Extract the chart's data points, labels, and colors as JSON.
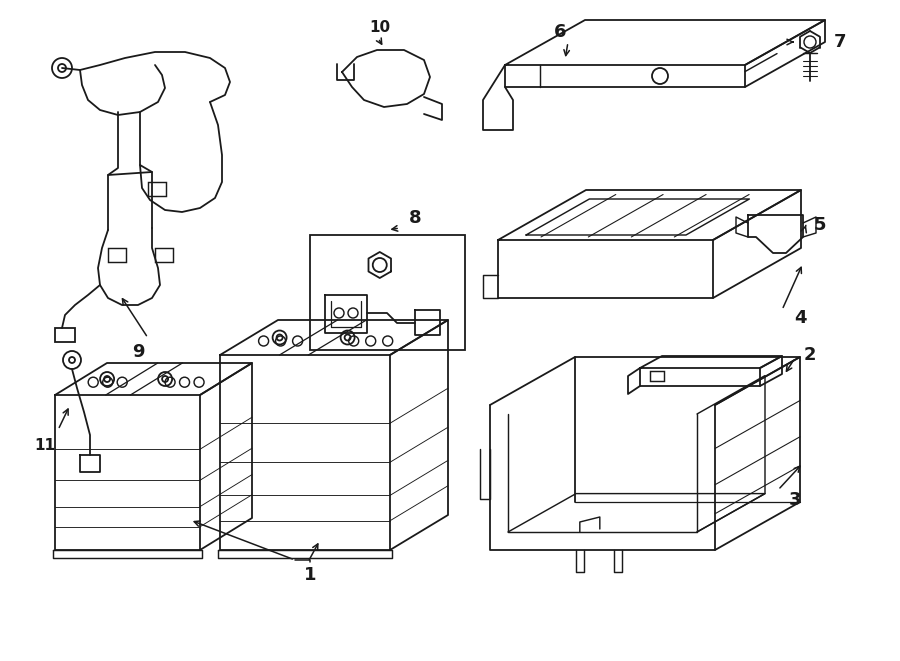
{
  "background_color": "#ffffff",
  "line_color": "#1a1a1a",
  "label_color": "#1a1a1a",
  "label_fontsize": 12,
  "fig_width": 9.0,
  "fig_height": 6.61,
  "dpi": 100
}
